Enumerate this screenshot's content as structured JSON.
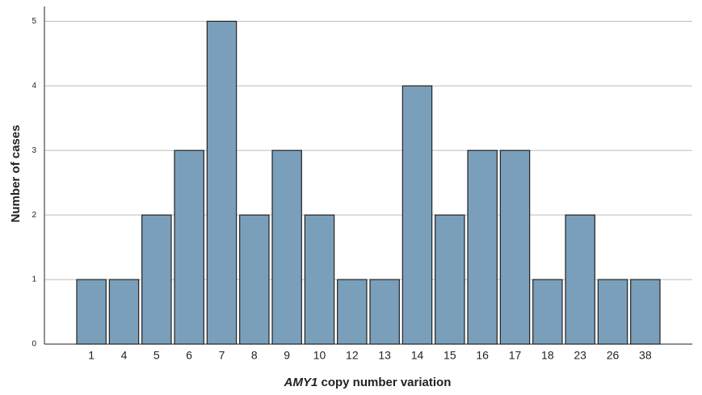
{
  "chart_data": {
    "type": "bar",
    "categories": [
      "1",
      "4",
      "5",
      "6",
      "7",
      "8",
      "9",
      "10",
      "12",
      "13",
      "14",
      "15",
      "16",
      "17",
      "18",
      "23",
      "26",
      "38"
    ],
    "values": [
      1,
      1,
      2,
      3,
      5,
      2,
      3,
      2,
      1,
      1,
      4,
      2,
      3,
      3,
      1,
      2,
      1,
      1
    ],
    "color": "#7a9fbb",
    "ylim": [
      0,
      5.23
    ],
    "yticks": [
      0,
      1,
      2,
      3,
      4,
      5
    ],
    "grid": true,
    "x_label_italic": "AMY1",
    "x_label": "copy number variation",
    "y_label": "Number of cases"
  }
}
